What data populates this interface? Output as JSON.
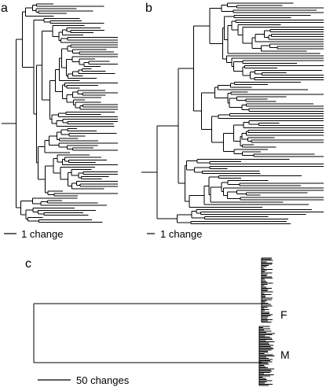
{
  "panels": {
    "a": {
      "label": "a",
      "scale_text": "1 change"
    },
    "b": {
      "label": "b",
      "scale_text": "1 change"
    },
    "c": {
      "label": "c",
      "scale_text": "50 changes",
      "clade_top": "F",
      "clade_bottom": "M"
    }
  },
  "colors": {
    "ink": "#000000",
    "background": "#ffffff"
  }
}
